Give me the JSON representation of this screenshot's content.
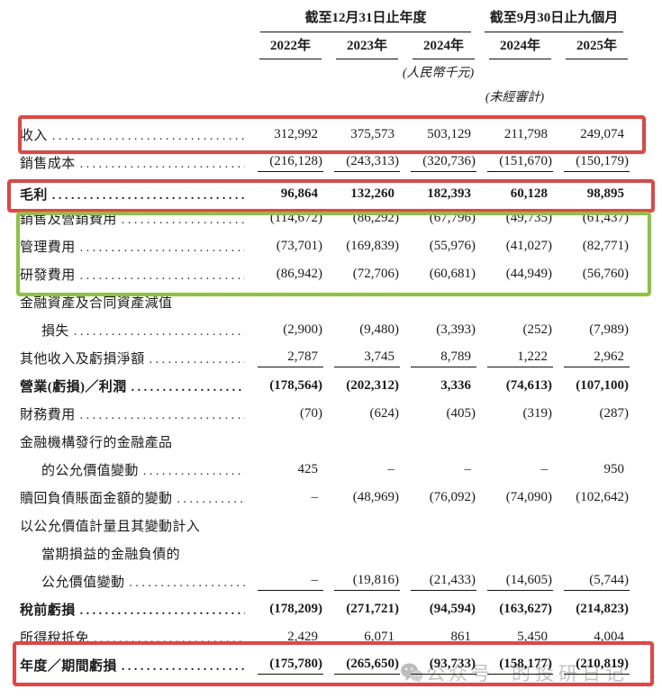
{
  "header": {
    "period_group_annual": "截至12月31日止年度",
    "period_group_interim": "截至9月30日止九個月",
    "years": [
      "2022年",
      "2023年",
      "2024年",
      "2024年",
      "2025年"
    ],
    "currency_note": "(人民幣千元)",
    "unaudited_note": "(未經審計)"
  },
  "table": {
    "columns": [
      "2022年",
      "2023年",
      "2024年",
      "2024年",
      "2025年"
    ],
    "rows": [
      {
        "name": "revenue",
        "label": "收入",
        "dots": true,
        "bold": false,
        "indent": false,
        "underline": false,
        "values": [
          "312,992",
          "375,573",
          "503,129",
          "211,798",
          "249,074"
        ]
      },
      {
        "name": "cost-of-sales",
        "label": "銷售成本",
        "dots": true,
        "bold": false,
        "indent": false,
        "underline": true,
        "values": [
          "(216,128)",
          "(243,313)",
          "(320,736)",
          "(151,670)",
          "(150,179)"
        ]
      },
      {
        "name": "gross-profit",
        "label": "毛利",
        "dots": true,
        "bold": true,
        "indent": false,
        "underline": false,
        "tall": true,
        "values": [
          "96,864",
          "132,260",
          "182,393",
          "60,128",
          "98,895"
        ]
      },
      {
        "name": "selling-marketing-expenses",
        "label": "銷售及營銷費用",
        "dots": true,
        "bold": false,
        "indent": false,
        "underline": false,
        "values": [
          "(114,672)",
          "(86,292)",
          "(67,796)",
          "(49,735)",
          "(61,437)"
        ]
      },
      {
        "name": "admin-expenses",
        "label": "管理費用",
        "dots": true,
        "bold": false,
        "indent": false,
        "underline": false,
        "values": [
          "(73,701)",
          "(169,839)",
          "(55,976)",
          "(41,027)",
          "(82,771)"
        ]
      },
      {
        "name": "rd-expenses",
        "label": "研發費用",
        "dots": true,
        "bold": false,
        "indent": false,
        "underline": false,
        "values": [
          "(86,942)",
          "(72,706)",
          "(60,681)",
          "(44,949)",
          "(56,760)"
        ]
      },
      {
        "name": "impairment-caption",
        "label": "金融資產及合同資產減值",
        "dots": false,
        "bold": false,
        "indent": false,
        "underline": false,
        "values": null
      },
      {
        "name": "impairment-loss",
        "label": "損失",
        "dots": true,
        "bold": false,
        "indent": true,
        "underline": false,
        "values": [
          "(2,900)",
          "(9,480)",
          "(3,393)",
          "(252)",
          "(7,989)"
        ]
      },
      {
        "name": "other-income-net-loss",
        "label": "其他收入及虧損淨額",
        "dots": true,
        "bold": false,
        "indent": false,
        "underline": true,
        "values": [
          "2,787",
          "3,745",
          "8,789",
          "1,222",
          "2,962"
        ]
      },
      {
        "name": "operating-loss-profit",
        "label": "營業(虧損)／利潤",
        "dots": true,
        "bold": true,
        "indent": false,
        "underline": false,
        "values": [
          "(178,564)",
          "(202,312)",
          "3,336",
          "(74,613)",
          "(107,100)"
        ]
      },
      {
        "name": "finance-costs",
        "label": "財務費用",
        "dots": true,
        "bold": false,
        "indent": false,
        "underline": false,
        "values": [
          "(70)",
          "(624)",
          "(405)",
          "(319)",
          "(287)"
        ]
      },
      {
        "name": "financial-products-caption",
        "label": "金融機構發行的金融產品",
        "dots": false,
        "bold": false,
        "indent": false,
        "underline": false,
        "values": null
      },
      {
        "name": "financial-products-fv-change",
        "label": "的公允價值變動",
        "dots": true,
        "bold": false,
        "indent": true,
        "underline": false,
        "values": [
          "425",
          "–",
          "–",
          "–",
          "950"
        ]
      },
      {
        "name": "redemption-liabilities-change",
        "label": "贖回負債賬面金額的變動",
        "dots": true,
        "bold": false,
        "indent": false,
        "underline": false,
        "values": [
          "–",
          "(48,969)",
          "(76,092)",
          "(74,090)",
          "(102,642)"
        ]
      },
      {
        "name": "fvtpl-caption-1",
        "label": "以公允價值計量且其變動計入",
        "dots": false,
        "bold": false,
        "indent": false,
        "underline": false,
        "values": null
      },
      {
        "name": "fvtpl-caption-2",
        "label": "當期損益的金融負債的",
        "dots": false,
        "bold": false,
        "indent": true,
        "underline": false,
        "values": null
      },
      {
        "name": "fvtpl-fv-change",
        "label": "公允價值變動",
        "dots": true,
        "bold": false,
        "indent": true,
        "underline": true,
        "values": [
          "–",
          "(19,816)",
          "(21,433)",
          "(14,605)",
          "(5,744)"
        ]
      },
      {
        "name": "loss-before-tax",
        "label": "稅前虧損",
        "dots": true,
        "bold": true,
        "indent": false,
        "underline": false,
        "values": [
          "(178,209)",
          "(271,721)",
          "(94,594)",
          "(163,627)",
          "(214,823)"
        ]
      },
      {
        "name": "income-tax-credit",
        "label": "所得稅抵免",
        "dots": true,
        "bold": false,
        "indent": false,
        "underline": false,
        "values": [
          "2,429",
          "6,071",
          "861",
          "5,450",
          "4,004"
        ]
      },
      {
        "name": "loss-for-period",
        "label": "年度／期間虧損",
        "dots": true,
        "bold": true,
        "indent": false,
        "underline": true,
        "values": [
          "(175,780)",
          "(265,650)",
          "(93,733)",
          "(158,177)",
          "(210,819)"
        ]
      }
    ]
  },
  "annotations": {
    "red_color": "#e84340",
    "green_color": "#8bc53f",
    "boxes": [
      {
        "id": "box-revenue",
        "name": "revenue-highlight-box",
        "color": "red"
      },
      {
        "id": "box-grossprofit",
        "name": "gross-profit-highlight-box",
        "color": "red"
      },
      {
        "id": "box-expenses",
        "name": "expenses-highlight-box",
        "color": "green"
      },
      {
        "id": "box-periodloss",
        "name": "period-loss-highlight-box",
        "color": "red"
      }
    ]
  },
  "watermark": {
    "icon": "wechat-icon",
    "text_left": "公众号",
    "text_right": "的投研日记",
    "color": "#c2c2c2"
  }
}
